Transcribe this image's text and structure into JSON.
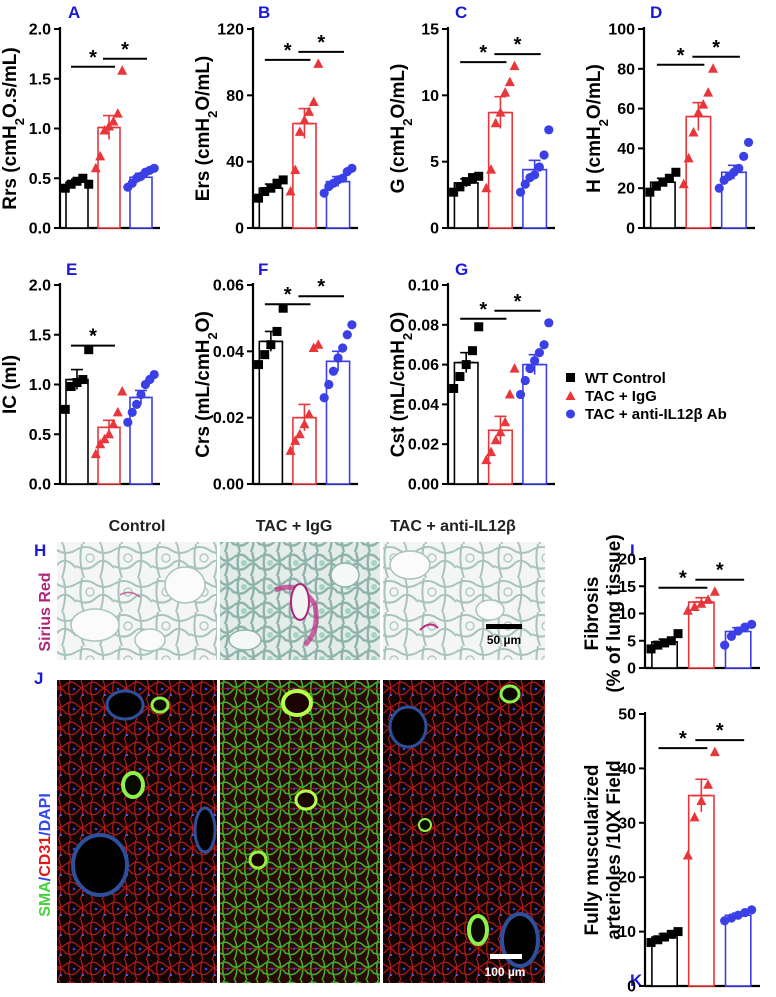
{
  "colors": {
    "control": "#000000",
    "igg": "#e8363a",
    "anti": "#3b3fe6",
    "panel_label": "#1a1ad6",
    "sirius": "#b0237a",
    "sma": "#46d13a",
    "cd31": "#e01818",
    "dapi": "#3346f0"
  },
  "legend": [
    {
      "label": "WT Control",
      "marker": "square",
      "color": "#000000"
    },
    {
      "label": "TAC + IgG",
      "marker": "triangle",
      "color": "#e8363a"
    },
    {
      "label": "TAC + anti-IL12β Ab",
      "marker": "circle",
      "color": "#3b3fe6"
    }
  ],
  "chart_data": [
    {
      "panel": "A",
      "type": "bar",
      "ylabel": "Rrs (cmH2O.s/mL)",
      "ylim": [
        0,
        2.0
      ],
      "yticks": [
        "0.0",
        "0.5",
        "1.0",
        "1.5",
        "2.0"
      ],
      "tickvals": [
        0,
        0.5,
        1.0,
        1.5,
        2.0
      ],
      "means": [
        0.46,
        1.01,
        0.51
      ],
      "sem": [
        0.03,
        0.12,
        0.04
      ],
      "points": [
        [
          0.4,
          0.44,
          0.47,
          0.5,
          0.44
        ],
        [
          0.6,
          0.72,
          0.98,
          1.02,
          1.07,
          1.15,
          1.58
        ],
        [
          0.41,
          0.45,
          0.5,
          0.52,
          0.56,
          0.58,
          0.6
        ]
      ],
      "sig": [
        [
          0,
          1
        ],
        [
          1,
          2
        ]
      ]
    },
    {
      "panel": "B",
      "type": "bar",
      "ylabel": "Ers (cmH2O/mL)",
      "ylim": [
        0,
        120
      ],
      "yticks": [
        "0",
        "40",
        "80",
        "120"
      ],
      "tickvals": [
        0,
        40,
        80,
        120
      ],
      "means": [
        24,
        63,
        28
      ],
      "sem": [
        2.5,
        9,
        3
      ],
      "points": [
        [
          18,
          22,
          24,
          27,
          29
        ],
        [
          22,
          35,
          58,
          65,
          70,
          76,
          99
        ],
        [
          21,
          25,
          27,
          29,
          30,
          34,
          36
        ]
      ],
      "sig": [
        [
          0,
          1
        ],
        [
          1,
          2
        ]
      ]
    },
    {
      "panel": "C",
      "type": "bar",
      "ylabel": "G (cmH2O/mL)",
      "ylim": [
        0,
        15
      ],
      "yticks": [
        "0",
        "5",
        "10",
        "15"
      ],
      "tickvals": [
        0,
        5,
        10,
        15
      ],
      "means": [
        3.4,
        8.7,
        4.4
      ],
      "sem": [
        0.3,
        1.2,
        0.7
      ],
      "points": [
        [
          2.7,
          3.1,
          3.5,
          3.8,
          3.9
        ],
        [
          3.0,
          4.4,
          7.9,
          8.7,
          10.2,
          11.0,
          12.2
        ],
        [
          2.7,
          3.3,
          3.8,
          4.0,
          4.6,
          5.5,
          7.4
        ]
      ],
      "sig": [
        [
          0,
          1
        ],
        [
          1,
          2
        ]
      ]
    },
    {
      "panel": "D",
      "type": "bar",
      "ylabel": "H (cmH2O/mL)",
      "ylim": [
        0,
        100
      ],
      "yticks": [
        "0",
        "20",
        "40",
        "60",
        "80",
        "100"
      ],
      "tickvals": [
        0,
        20,
        40,
        60,
        80,
        100
      ],
      "means": [
        23,
        56,
        28
      ],
      "sem": [
        2,
        7,
        3.5
      ],
      "points": [
        [
          18,
          21,
          23,
          25,
          28
        ],
        [
          22,
          35,
          48,
          58,
          62,
          68,
          80
        ],
        [
          20,
          24,
          26,
          28,
          30,
          36,
          43
        ]
      ],
      "sig": [
        [
          0,
          1
        ],
        [
          1,
          2
        ]
      ]
    },
    {
      "panel": "E",
      "type": "bar",
      "ylabel": "IC (ml)",
      "ylim": [
        0,
        2.0
      ],
      "yticks": [
        "0.0",
        "0.5",
        "1.0",
        "1.5",
        "2.0"
      ],
      "tickvals": [
        0,
        0.5,
        1.0,
        1.5,
        2.0
      ],
      "means": [
        1.05,
        0.57,
        0.87
      ],
      "sem": [
        0.1,
        0.07,
        0.07
      ],
      "points": [
        [
          0.75,
          0.98,
          1.02,
          1.05,
          1.35
        ],
        [
          0.3,
          0.4,
          0.45,
          0.5,
          0.6,
          0.72,
          0.93
        ],
        [
          0.62,
          0.72,
          0.8,
          0.9,
          1.0,
          1.05,
          1.1
        ]
      ],
      "sig": [
        [
          0,
          1
        ]
      ]
    },
    {
      "panel": "F",
      "type": "bar",
      "ylabel": "Crs (mL/cmH2O)",
      "ylim": [
        0,
        0.06
      ],
      "yticks": [
        "0.00",
        "0.02",
        "0.04",
        "0.06"
      ],
      "tickvals": [
        0,
        0.02,
        0.04,
        0.06
      ],
      "means": [
        0.043,
        0.02,
        0.037
      ],
      "sem": [
        0.003,
        0.004,
        0.003
      ],
      "points": [
        [
          0.036,
          0.039,
          0.042,
          0.046,
          0.053
        ],
        [
          0.01,
          0.013,
          0.015,
          0.018,
          0.021,
          0.041,
          0.042
        ],
        [
          0.026,
          0.03,
          0.034,
          0.038,
          0.041,
          0.045,
          0.048
        ]
      ],
      "sig": [
        [
          0,
          1
        ],
        [
          1,
          2
        ]
      ]
    },
    {
      "panel": "G",
      "type": "bar",
      "ylabel": "Cst (mL/cmH2O)",
      "ylim": [
        0,
        0.1
      ],
      "yticks": [
        "0.00",
        "0.02",
        "0.04",
        "0.06",
        "0.08",
        "0.10"
      ],
      "tickvals": [
        0,
        0.02,
        0.04,
        0.06,
        0.08,
        0.1
      ],
      "means": [
        0.061,
        0.027,
        0.06
      ],
      "sem": [
        0.005,
        0.007,
        0.005
      ],
      "points": [
        [
          0.048,
          0.054,
          0.06,
          0.067,
          0.079
        ],
        [
          0.012,
          0.016,
          0.022,
          0.026,
          0.031,
          0.045,
          0.058
        ],
        [
          0.045,
          0.052,
          0.058,
          0.062,
          0.066,
          0.07,
          0.081
        ]
      ],
      "sig": [
        [
          0,
          1
        ],
        [
          1,
          2
        ]
      ]
    },
    {
      "panel": "I",
      "type": "bar",
      "ylabel": "Fibrosis\n(% of lung tissue)",
      "ylim": [
        0,
        20
      ],
      "yticks": [
        "0",
        "5",
        "10",
        "15",
        "20"
      ],
      "tickvals": [
        0,
        5,
        10,
        15,
        20
      ],
      "means": [
        4.8,
        12.1,
        6.7
      ],
      "sem": [
        0.5,
        0.8,
        0.7
      ],
      "points": [
        [
          3.5,
          4.2,
          4.6,
          5.0,
          6.3
        ],
        [
          10.5,
          11.2,
          11.8,
          12.5,
          14.0
        ],
        [
          4.2,
          5.8,
          6.8,
          7.5,
          8.0
        ]
      ],
      "sig": [
        [
          0,
          1
        ],
        [
          1,
          2
        ]
      ]
    },
    {
      "panel": "K",
      "type": "bar",
      "ylabel": "Fully muscularized\narterioles /10X Field",
      "ylim": [
        0,
        50
      ],
      "yticks": [
        "0",
        "10",
        "20",
        "30",
        "40",
        "50"
      ],
      "tickvals": [
        0,
        10,
        20,
        30,
        40,
        50
      ],
      "means": [
        9,
        35,
        13
      ],
      "sem": [
        0.6,
        3,
        0.4
      ],
      "points": [
        [
          8,
          8.5,
          9,
          9.5,
          10
        ],
        [
          24,
          31,
          34,
          37,
          43
        ],
        [
          12,
          12.5,
          13,
          13.5,
          14
        ]
      ],
      "sig": [
        [
          0,
          1
        ],
        [
          1,
          2
        ]
      ]
    }
  ],
  "images": {
    "column_titles": [
      "Control",
      "TAC + IgG",
      "TAC + anti-IL12β"
    ],
    "row_H": {
      "label": "H",
      "stain": "Sirius Red",
      "scalebar": "50 µm"
    },
    "row_J": {
      "label": "J",
      "stain_parts": [
        "SMA",
        "/",
        "CD31",
        "/DAPI"
      ],
      "scalebar": "100 µm"
    }
  }
}
